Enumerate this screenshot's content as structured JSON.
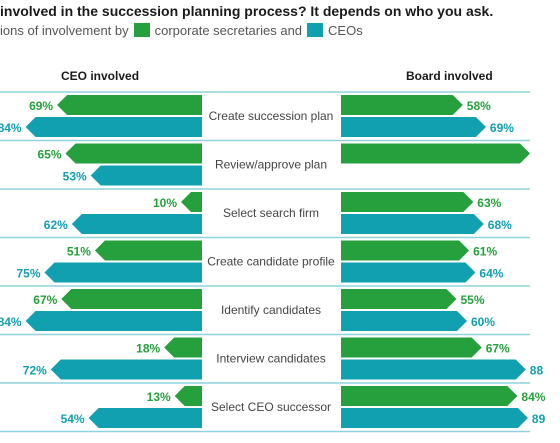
{
  "chart_data": {
    "type": "bar",
    "title": "involved in the succession planning process? It depends on who you ask.",
    "subtitle_parts": [
      "ions of involvement by",
      "corporate secretaries and",
      "CEOs"
    ],
    "left_panel_title": "CEO involved",
    "right_panel_title": "Board involved",
    "categories": [
      "Create succession plan",
      "Review/approve plan",
      "Select search firm",
      "Create candidate profile",
      "Identify candidates",
      "Interview candidates",
      "Select CEO successor"
    ],
    "panels": [
      {
        "name": "CEO involved",
        "series": [
          {
            "name": "corporate secretaries",
            "values": [
              69,
              65,
              10,
              51,
              67,
              18,
              13
            ]
          },
          {
            "name": "CEOs",
            "values": [
              84,
              53,
              62,
              75,
              84,
              72,
              54
            ]
          }
        ]
      },
      {
        "name": "Board involved",
        "series": [
          {
            "name": "corporate secretaries",
            "values": [
              58,
              90,
              63,
              61,
              55,
              67,
              84
            ]
          },
          {
            "name": "CEOs",
            "values": [
              69,
              null,
              68,
              64,
              60,
              88,
              89
            ]
          }
        ]
      }
    ],
    "labels_right": [
      [
        "58%",
        "69%"
      ],
      [
        "",
        ""
      ],
      [
        "63%",
        "68%"
      ],
      [
        "61%",
        "64%"
      ],
      [
        "55%",
        "60%"
      ],
      [
        "67%",
        "88"
      ],
      [
        "84%",
        "89"
      ]
    ],
    "colors": {
      "corporate_secretaries": "#26a03c",
      "ceos": "#10a0b0",
      "divider": "#8fd3dc"
    }
  }
}
